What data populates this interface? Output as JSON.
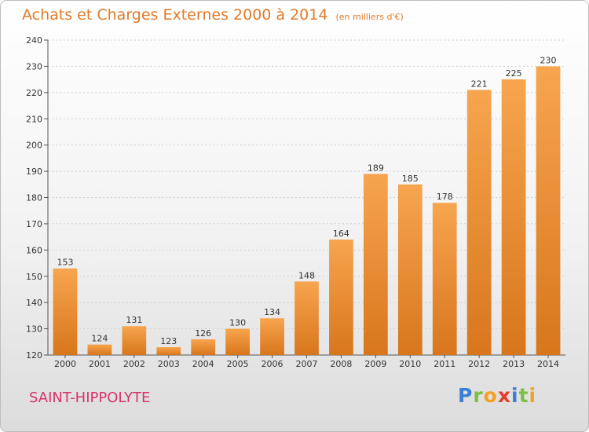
{
  "header": {
    "title": "Achats et Charges Externes 2000 à 2014",
    "subtitle": "(en milliers d'€)"
  },
  "footer": {
    "commune": "SAINT-HIPPOLYTE",
    "logo": {
      "letters": [
        "P",
        "r",
        "o",
        "x",
        "i",
        "t",
        "i"
      ],
      "colors": [
        "#3a7fd5",
        "#7ac143",
        "#f4a020",
        "#e63c2a",
        "#3a7fd5",
        "#7ac143",
        "#f4a020"
      ]
    }
  },
  "colors": {
    "bar_top": "#f7a54f",
    "bar_bottom": "#d8761c",
    "axis": "#555555",
    "grid": "#cfcfcf"
  },
  "chart_data": {
    "type": "bar",
    "title": "Achats et Charges Externes 2000 à 2014",
    "subtitle": "(en milliers d'€)",
    "categories": [
      "2000",
      "2001",
      "2002",
      "2003",
      "2004",
      "2005",
      "2006",
      "2007",
      "2008",
      "2009",
      "2010",
      "2011",
      "2012",
      "2013",
      "2014"
    ],
    "values": [
      153,
      124,
      131,
      123,
      126,
      130,
      134,
      148,
      164,
      189,
      185,
      178,
      221,
      225,
      230
    ],
    "ylim": [
      120,
      240
    ],
    "yticks": [
      120,
      130,
      140,
      150,
      160,
      170,
      180,
      190,
      200,
      210,
      220,
      230,
      240
    ],
    "grid": true,
    "data_labels": true
  }
}
